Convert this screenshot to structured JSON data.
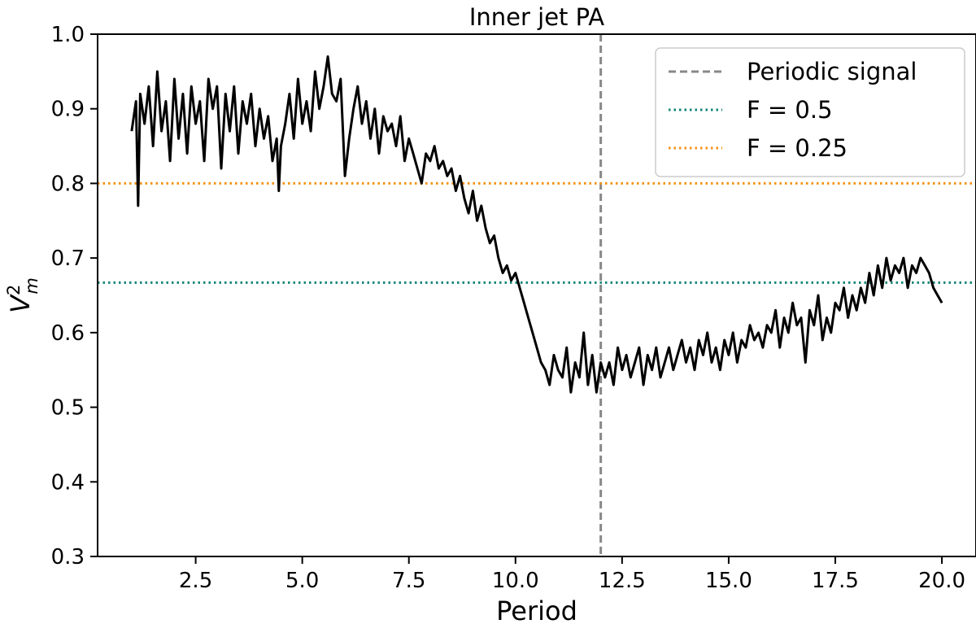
{
  "chart_data": {
    "type": "line",
    "title": "Inner jet PA",
    "xlabel": "Period",
    "ylabel": "V_m^2",
    "xlim": [
      0.2,
      20.8
    ],
    "ylim": [
      0.3,
      1.0
    ],
    "xticks": [
      "2.5",
      "5.0",
      "7.5",
      "10.0",
      "12.5",
      "15.0",
      "17.5",
      "20.0"
    ],
    "yticks": [
      "0.3",
      "0.4",
      "0.5",
      "0.6",
      "0.7",
      "0.8",
      "0.9",
      "1.0"
    ],
    "grid": false,
    "legend_position": "top-right",
    "series": [
      {
        "style": "solid",
        "color": "#000000",
        "x": [
          1.0,
          1.1,
          1.15,
          1.2,
          1.3,
          1.4,
          1.5,
          1.6,
          1.7,
          1.8,
          1.9,
          2.0,
          2.1,
          2.2,
          2.3,
          2.4,
          2.5,
          2.6,
          2.7,
          2.8,
          2.9,
          3.0,
          3.1,
          3.2,
          3.3,
          3.4,
          3.5,
          3.6,
          3.7,
          3.8,
          3.9,
          4.0,
          4.1,
          4.2,
          4.3,
          4.4,
          4.45,
          4.5,
          4.6,
          4.7,
          4.8,
          4.9,
          5.0,
          5.1,
          5.2,
          5.3,
          5.4,
          5.5,
          5.6,
          5.7,
          5.8,
          5.9,
          6.0,
          6.1,
          6.2,
          6.3,
          6.4,
          6.5,
          6.6,
          6.7,
          6.8,
          6.9,
          7.0,
          7.1,
          7.2,
          7.3,
          7.4,
          7.5,
          7.6,
          7.7,
          7.8,
          7.9,
          8.0,
          8.1,
          8.2,
          8.3,
          8.4,
          8.5,
          8.6,
          8.7,
          8.8,
          8.9,
          9.0,
          9.1,
          9.2,
          9.3,
          9.4,
          9.5,
          9.6,
          9.7,
          9.8,
          9.9,
          10.0,
          10.1,
          10.2,
          10.3,
          10.4,
          10.5,
          10.6,
          10.7,
          10.8,
          10.9,
          11.0,
          11.1,
          11.2,
          11.3,
          11.4,
          11.5,
          11.6,
          11.7,
          11.8,
          11.9,
          12.0,
          12.1,
          12.2,
          12.3,
          12.4,
          12.5,
          12.6,
          12.7,
          12.8,
          12.9,
          13.0,
          13.1,
          13.2,
          13.3,
          13.4,
          13.5,
          13.6,
          13.7,
          13.8,
          13.9,
          14.0,
          14.1,
          14.2,
          14.3,
          14.4,
          14.5,
          14.6,
          14.7,
          14.8,
          14.9,
          15.0,
          15.1,
          15.2,
          15.3,
          15.4,
          15.5,
          15.6,
          15.7,
          15.8,
          15.9,
          16.0,
          16.1,
          16.2,
          16.3,
          16.4,
          16.5,
          16.6,
          16.7,
          16.8,
          16.9,
          17.0,
          17.1,
          17.2,
          17.3,
          17.4,
          17.5,
          17.6,
          17.7,
          17.8,
          17.9,
          18.0,
          18.1,
          18.2,
          18.3,
          18.4,
          18.5,
          18.6,
          18.7,
          18.8,
          18.9,
          19.0,
          19.1,
          19.2,
          19.3,
          19.4,
          19.5,
          19.6,
          19.7,
          19.8,
          19.9,
          20.0
        ],
        "y": [
          0.87,
          0.91,
          0.77,
          0.92,
          0.88,
          0.93,
          0.85,
          0.95,
          0.87,
          0.91,
          0.83,
          0.94,
          0.86,
          0.92,
          0.84,
          0.93,
          0.88,
          0.91,
          0.83,
          0.94,
          0.9,
          0.93,
          0.82,
          0.92,
          0.87,
          0.93,
          0.84,
          0.91,
          0.88,
          0.92,
          0.85,
          0.9,
          0.86,
          0.89,
          0.83,
          0.86,
          0.79,
          0.85,
          0.88,
          0.92,
          0.86,
          0.94,
          0.88,
          0.91,
          0.87,
          0.95,
          0.9,
          0.93,
          0.97,
          0.92,
          0.91,
          0.94,
          0.81,
          0.86,
          0.9,
          0.93,
          0.88,
          0.91,
          0.86,
          0.9,
          0.84,
          0.89,
          0.87,
          0.88,
          0.85,
          0.89,
          0.83,
          0.86,
          0.84,
          0.82,
          0.8,
          0.84,
          0.83,
          0.85,
          0.82,
          0.83,
          0.81,
          0.82,
          0.79,
          0.81,
          0.78,
          0.76,
          0.79,
          0.75,
          0.77,
          0.74,
          0.72,
          0.73,
          0.7,
          0.68,
          0.69,
          0.67,
          0.68,
          0.66,
          0.64,
          0.62,
          0.6,
          0.58,
          0.56,
          0.55,
          0.53,
          0.57,
          0.55,
          0.54,
          0.58,
          0.52,
          0.56,
          0.54,
          0.6,
          0.53,
          0.57,
          0.52,
          0.56,
          0.54,
          0.56,
          0.53,
          0.58,
          0.55,
          0.57,
          0.54,
          0.56,
          0.58,
          0.53,
          0.57,
          0.55,
          0.58,
          0.54,
          0.56,
          0.58,
          0.55,
          0.57,
          0.59,
          0.56,
          0.58,
          0.55,
          0.59,
          0.57,
          0.6,
          0.56,
          0.58,
          0.55,
          0.59,
          0.57,
          0.6,
          0.56,
          0.59,
          0.58,
          0.61,
          0.59,
          0.6,
          0.58,
          0.61,
          0.6,
          0.63,
          0.58,
          0.62,
          0.6,
          0.64,
          0.61,
          0.62,
          0.56,
          0.63,
          0.61,
          0.65,
          0.59,
          0.62,
          0.6,
          0.64,
          0.63,
          0.66,
          0.62,
          0.65,
          0.63,
          0.66,
          0.64,
          0.68,
          0.65,
          0.69,
          0.66,
          0.7,
          0.67,
          0.69,
          0.68,
          0.7,
          0.66,
          0.69,
          0.68,
          0.7,
          0.69,
          0.68,
          0.66,
          0.65,
          0.64
        ]
      }
    ],
    "reference_lines": [
      {
        "orientation": "vertical",
        "value": 12.0,
        "style": "dashed",
        "color": "#888888"
      },
      {
        "orientation": "horizontal",
        "value": 0.667,
        "style": "dotted",
        "color": "#138577"
      },
      {
        "orientation": "horizontal",
        "value": 0.8,
        "style": "dotted",
        "color": "#f5900f"
      }
    ],
    "legend": [
      {
        "label": "Periodic signal",
        "style": "dashed",
        "color": "#888888"
      },
      {
        "label": "F = 0.5",
        "style": "dotted",
        "color": "#138577"
      },
      {
        "label": "F = 0.25",
        "style": "dotted",
        "color": "#f5900f"
      }
    ]
  }
}
